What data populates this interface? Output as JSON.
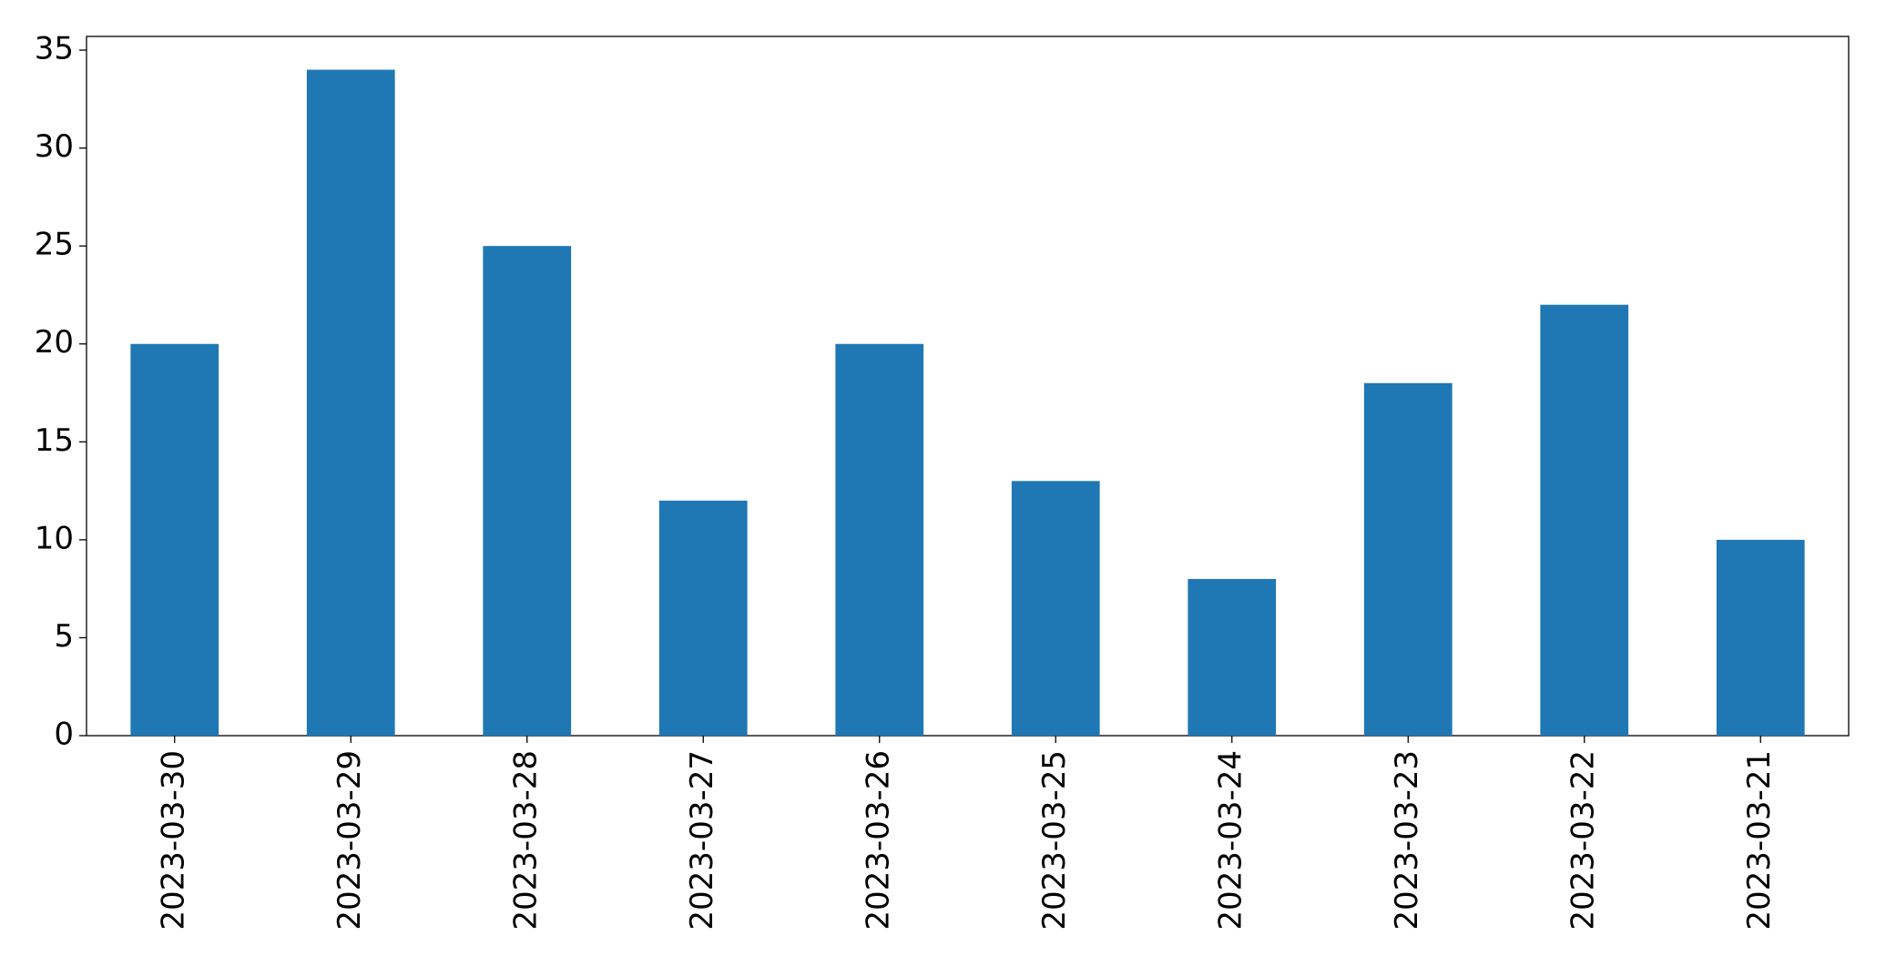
{
  "chart_data": {
    "type": "bar",
    "categories": [
      "2023-03-30",
      "2023-03-29",
      "2023-03-28",
      "2023-03-27",
      "2023-03-26",
      "2023-03-25",
      "2023-03-24",
      "2023-03-23",
      "2023-03-22",
      "2023-03-21"
    ],
    "values": [
      20,
      34,
      25,
      12,
      20,
      13,
      8,
      18,
      22,
      10
    ],
    "color": "#1f77b4",
    "ylim": [
      0,
      35.7
    ],
    "yticks": [
      0,
      5,
      10,
      15,
      20,
      25,
      30,
      35
    ],
    "grid": false
  }
}
